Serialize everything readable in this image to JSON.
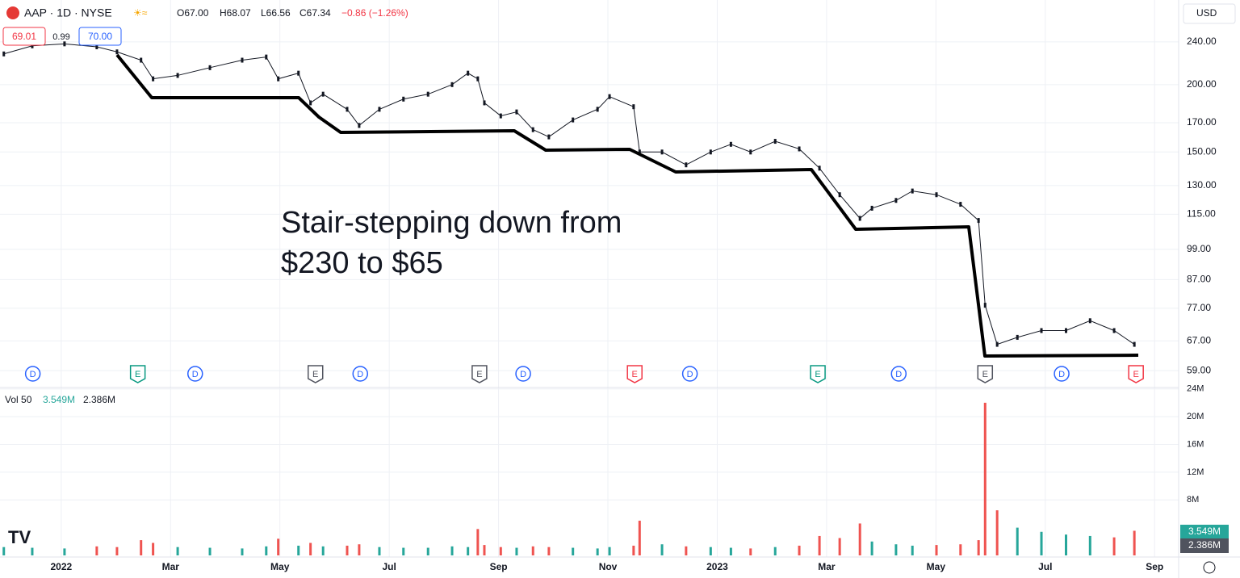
{
  "chart_data": {
    "type": "candlestick",
    "header": {
      "symbol": "AAP · 1D · NYSE",
      "open": "O67.00",
      "high": "H68.07",
      "low": "L66.56",
      "close": "C67.34",
      "change": "−0.86 (−1.26%)"
    },
    "badges": {
      "bid": "69.01",
      "spread": "0.99",
      "ask": "70.00"
    },
    "currency": "USD",
    "annotation": [
      "Stair-stepping down from",
      "$230 to $65"
    ],
    "log_scale": true,
    "grid": true,
    "color": "#131722",
    "up_color": "#26a69a",
    "down_color": "#ef5350",
    "xlim": [
      -1.12,
      20.44
    ],
    "xticks": [
      {
        "value": 0,
        "label": "2022"
      },
      {
        "value": 2,
        "label": "Mar"
      },
      {
        "value": 4,
        "label": "May"
      },
      {
        "value": 6,
        "label": "Jul"
      },
      {
        "value": 8,
        "label": "Sep"
      },
      {
        "value": 10,
        "label": "Nov"
      },
      {
        "value": 12,
        "label": "2023"
      },
      {
        "value": 14,
        "label": "Mar"
      },
      {
        "value": 16,
        "label": "May"
      },
      {
        "value": 18,
        "label": "Jul"
      },
      {
        "value": 20,
        "label": "Sep"
      }
    ],
    "ylim": [
      54.9,
      287
    ],
    "yticks": [
      {
        "value": 240,
        "label": "240.00"
      },
      {
        "value": 200,
        "label": "200.00"
      },
      {
        "value": 170,
        "label": "170.00"
      },
      {
        "value": 150,
        "label": "150.00"
      },
      {
        "value": 130,
        "label": "130.00"
      },
      {
        "value": 115,
        "label": "115.00"
      },
      {
        "value": 99,
        "label": "99.00"
      },
      {
        "value": 87,
        "label": "87.00"
      },
      {
        "value": 77,
        "label": "77.00"
      },
      {
        "value": 67,
        "label": "67.00"
      },
      {
        "value": 59,
        "label": "59.00"
      }
    ],
    "x": [
      -1.05,
      -0.53,
      0.06,
      0.65,
      1.02,
      1.46,
      1.68,
      2.13,
      2.72,
      3.31,
      3.75,
      3.97,
      4.34,
      4.56,
      4.79,
      5.23,
      5.45,
      5.82,
      6.26,
      6.71,
      7.15,
      7.44,
      7.62,
      7.74,
      8.04,
      8.33,
      8.63,
      8.92,
      9.36,
      9.81,
      10.03,
      10.47,
      10.58,
      10.99,
      11.43,
      11.88,
      12.25,
      12.61,
      13.06,
      13.5,
      13.87,
      14.24,
      14.61,
      14.83,
      15.27,
      15.57,
      16.01,
      16.45,
      16.78,
      16.9,
      17.12,
      17.49,
      17.93,
      18.38,
      18.82,
      19.26,
      19.63
    ],
    "values": [
      228,
      236,
      238,
      235,
      230,
      222,
      205,
      208,
      215,
      222,
      225,
      205,
      210,
      185,
      192,
      180,
      168,
      180,
      188,
      192,
      200,
      210,
      205,
      185,
      175,
      178,
      165,
      160,
      172,
      180,
      190,
      182,
      150,
      150,
      142,
      150,
      155,
      150,
      157,
      152,
      140,
      125,
      113,
      118,
      122,
      127,
      125,
      120,
      112,
      78,
      66,
      68,
      70,
      70,
      73,
      70,
      66
    ],
    "volume": {
      "label": "Vol 50",
      "last": "3.549M",
      "average": "2.386M",
      "ylim": [
        0,
        24.2
      ],
      "yticks": [
        {
          "value": 8,
          "label": "8M"
        },
        {
          "value": 12,
          "label": "12M"
        },
        {
          "value": 16,
          "label": "16M"
        },
        {
          "value": 20,
          "label": "20M"
        },
        {
          "value": 24,
          "label": "24M"
        }
      ],
      "values": [
        1.2,
        1.1,
        1.0,
        1.3,
        1.2,
        2.2,
        1.8,
        1.2,
        1.1,
        1.0,
        1.3,
        2.4,
        1.4,
        1.8,
        1.3,
        1.4,
        1.6,
        1.2,
        1.1,
        1.1,
        1.3,
        1.2,
        3.8,
        1.5,
        1.2,
        1.1,
        1.3,
        1.2,
        1.1,
        1.0,
        1.2,
        1.4,
        5.0,
        1.6,
        1.3,
        1.2,
        1.1,
        1.0,
        1.2,
        1.4,
        2.8,
        2.5,
        4.6,
        2.0,
        1.6,
        1.4,
        1.5,
        1.6,
        2.2,
        22,
        6.5,
        4.0,
        3.4,
        3.0,
        2.8,
        2.6,
        3.549
      ]
    },
    "events": [
      {
        "label": "D",
        "x": -0.52,
        "color": "#2962ff"
      },
      {
        "label": "E",
        "x": 1.4,
        "color": "#089981"
      },
      {
        "label": "D",
        "x": 2.45,
        "color": "#2962ff"
      },
      {
        "label": "E",
        "x": 4.65,
        "color": "#50535e"
      },
      {
        "label": "D",
        "x": 5.47,
        "color": "#2962ff"
      },
      {
        "label": "E",
        "x": 7.65,
        "color": "#50535e"
      },
      {
        "label": "D",
        "x": 8.45,
        "color": "#2962ff"
      },
      {
        "label": "E",
        "x": 10.49,
        "color": "#f23645"
      },
      {
        "label": "D",
        "x": 11.5,
        "color": "#2962ff"
      },
      {
        "label": "E",
        "x": 13.84,
        "color": "#089981"
      },
      {
        "label": "D",
        "x": 15.32,
        "color": "#2962ff"
      },
      {
        "label": "E",
        "x": 16.9,
        "color": "#50535e"
      },
      {
        "label": "D",
        "x": 18.3,
        "color": "#2962ff"
      },
      {
        "label": "E",
        "x": 19.66,
        "color": "#f23645"
      }
    ]
  }
}
